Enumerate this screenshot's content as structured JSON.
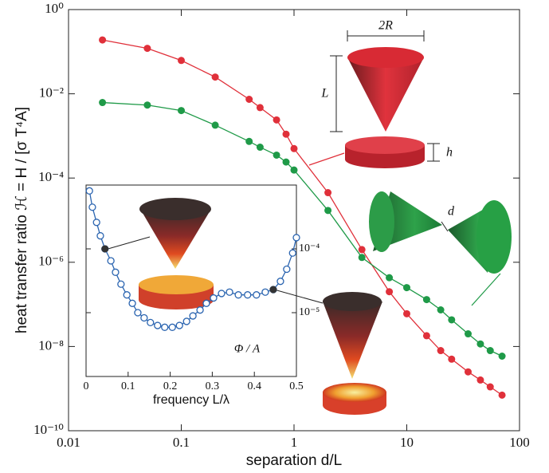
{
  "chart_data": [
    {
      "type": "line",
      "xlabel": "separation d/L",
      "ylabel": "heat transfer ratio ℋ = H / [σ T⁴A]",
      "x": [
        0.02,
        0.05,
        0.1,
        0.2,
        0.4,
        0.5,
        0.7,
        0.85,
        1,
        2,
        4,
        7,
        10,
        15,
        20,
        25,
        35,
        45,
        55,
        70
      ],
      "series": [
        {
          "color": "#e0303a",
          "values": [
            0.19,
            0.12,
            0.062,
            0.025,
            0.0074,
            0.0047,
            0.0024,
            0.0011,
            0.0005,
            4.5e-05,
            2e-06,
            2e-07,
            6e-08,
            1.8e-08,
            8e-09,
            5e-09,
            2.5e-09,
            1.6e-09,
            1.1e-09,
            7e-10
          ]
        },
        {
          "color": "#1f9a48",
          "values": [
            0.0062,
            0.0054,
            0.004,
            0.0018,
            0.00074,
            0.00054,
            0.00035,
            0.00024,
            0.000155,
            1.7e-05,
            1.3e-06,
            4.3e-07,
            2.5e-07,
            1.3e-07,
            7.4e-08,
            4.3e-08,
            2e-08,
            1.15e-08,
            8e-09,
            5.9e-09
          ]
        }
      ],
      "xscale": "log",
      "yscale": "log",
      "xlim": [
        0.01,
        100
      ],
      "ylim": [
        1e-10,
        1
      ],
      "xticks": [
        0.01,
        0.1,
        1,
        10,
        100
      ],
      "yticks": [
        {
          "value": 1,
          "label": "10⁰"
        },
        {
          "value": 0.01,
          "label": "10⁻²"
        },
        {
          "value": 0.0001,
          "label": "10⁻⁴"
        },
        {
          "value": 1e-06,
          "label": "10⁻⁶"
        },
        {
          "value": 1e-08,
          "label": "10⁻⁸"
        },
        {
          "value": 1e-10,
          "label": "10⁻¹⁰"
        }
      ],
      "annotations": [
        "2R",
        "L",
        "h",
        "d"
      ]
    },
    {
      "type": "line",
      "xlabel": "frequency L/λ",
      "annotation": "Φ / A",
      "x": [
        0.008,
        0.015,
        0.025,
        0.034,
        0.045,
        0.059,
        0.07,
        0.083,
        0.097,
        0.11,
        0.123,
        0.138,
        0.153,
        0.17,
        0.187,
        0.205,
        0.222,
        0.239,
        0.254,
        0.271,
        0.286,
        0.303,
        0.322,
        0.341,
        0.362,
        0.384,
        0.405,
        0.426,
        0.445,
        0.462,
        0.477,
        0.491,
        0.5
      ],
      "series": [
        {
          "color": "#2a64b0",
          "values": [
            0.00081,
            0.00045,
            0.00026,
            0.00016,
            0.0001,
            6.5e-05,
            4.3e-05,
            2.8e-05,
            1.9e-05,
            1.4e-05,
            1e-05,
            8.3e-06,
            7e-06,
            6.3e-06,
            5.9e-06,
            5.9e-06,
            6.3e-06,
            7.3e-06,
            8.9e-06,
            1.1e-05,
            1.4e-05,
            1.7e-05,
            2e-05,
            2.1e-05,
            1.9e-05,
            1.9e-05,
            1.9e-05,
            2.1e-05,
            2.3e-05,
            3.1e-05,
            4.8e-05,
            8.6e-05,
            0.00015
          ]
        }
      ],
      "markers": {
        "color": "#333333",
        "x": [
          0.045,
          0.445
        ],
        "values": [
          0.0001,
          2.3e-05
        ]
      },
      "xlim": [
        0,
        0.5
      ],
      "ylim": [
        1e-06,
        0.001
      ],
      "yscale": "log",
      "xticks": [
        0,
        0.1,
        0.2,
        0.3,
        0.4,
        0.5
      ],
      "yticks": [
        {
          "value": 0.0001,
          "label": "10⁻⁴"
        },
        {
          "value": 1e-05,
          "label": "10⁻⁵"
        }
      ]
    }
  ]
}
